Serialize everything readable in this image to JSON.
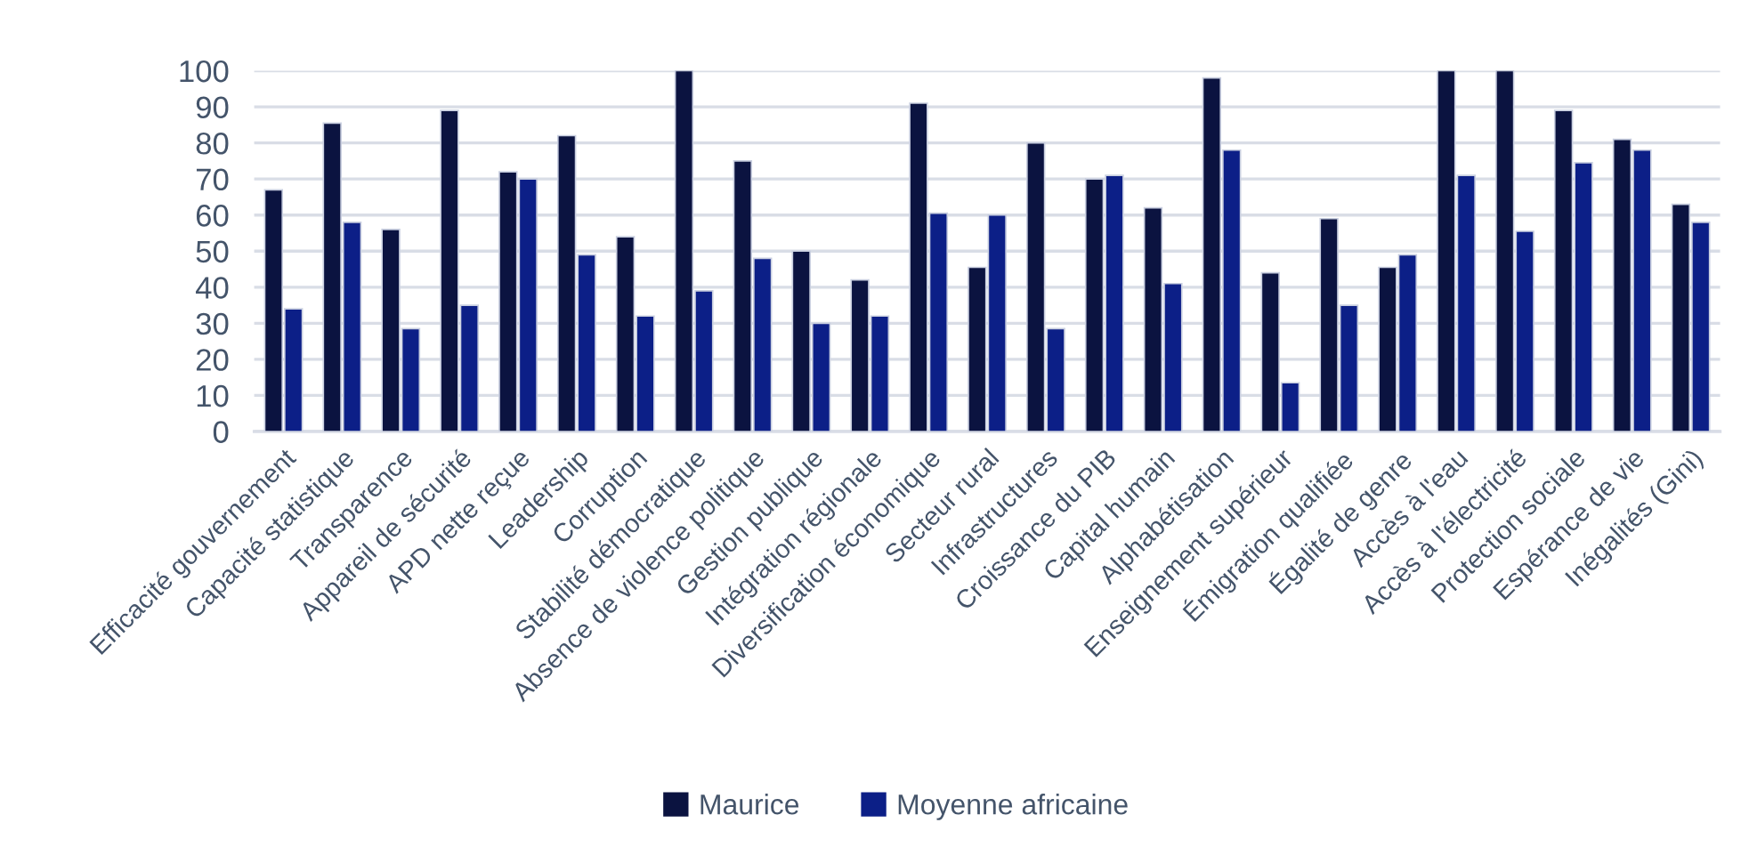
{
  "chart_data": {
    "type": "bar",
    "categories": [
      "Efficacité gouvernement",
      "Capacité statistique",
      "Transparence",
      "Appareil de sécurité",
      "APD nette reçue",
      "Leadership",
      "Corruption",
      "Stabilité démocratique",
      "Absence de violence politique",
      "Gestion publique",
      "Intégration régionale",
      "Diversification économique",
      "Secteur rural",
      "Infrastructures",
      "Croissance du PIB",
      "Capital humain",
      "Alphabétisation",
      "Enseignement supérieur",
      "Émigration qualifiée",
      "Égalité de genre",
      "Accès à l'eau",
      "Accès à l'électricité",
      "Protection sociale",
      "Espérance de vie",
      "Inégalités (Gini)"
    ],
    "series": [
      {
        "name": "Maurice",
        "color": "#0b1340",
        "values": [
          67,
          85.5,
          56,
          89,
          72,
          82,
          54,
          100,
          75,
          50,
          42,
          91,
          45.5,
          80,
          70,
          62,
          98,
          44,
          59,
          45.5,
          100,
          100,
          89,
          81,
          63
        ]
      },
      {
        "name": "Moyenne africaine",
        "color": "#0c1f87",
        "values": [
          34,
          58,
          28.5,
          35,
          70,
          49,
          32,
          39,
          48,
          30,
          32,
          60.5,
          60,
          28.5,
          71,
          41,
          78,
          13.5,
          35,
          49,
          71,
          55.5,
          74.5,
          78,
          58
        ]
      }
    ],
    "ylim": [
      0,
      100
    ],
    "yticks": [
      0,
      10,
      20,
      30,
      40,
      50,
      60,
      70,
      80,
      90,
      100
    ],
    "grid": "y",
    "legend": "bottom"
  }
}
